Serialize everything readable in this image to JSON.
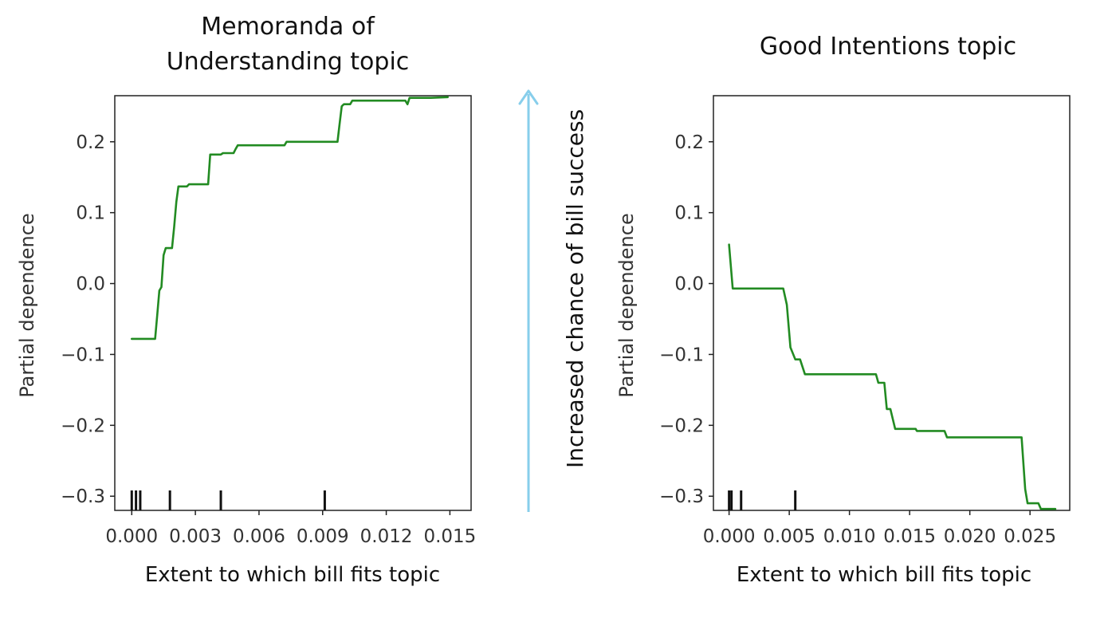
{
  "middle_annotation": {
    "label": "Increased chance of bill success",
    "arrow_color": "#87ceeb"
  },
  "line_color": "#228B22",
  "chart_data": [
    {
      "type": "line",
      "title": "Memoranda of Understanding topic",
      "title_lines": [
        "Memoranda of",
        "Understanding topic"
      ],
      "xlabel": "Extent to which bill fits topic",
      "ylabel": "Partial dependence",
      "xlim": [
        -0.0008,
        0.016
      ],
      "ylim": [
        -0.32,
        0.265
      ],
      "xticks": [
        0.0,
        0.003,
        0.006,
        0.009,
        0.012,
        0.015
      ],
      "xtick_labels": [
        "0.000",
        "0.003",
        "0.006",
        "0.009",
        "0.012",
        "0.015"
      ],
      "yticks": [
        0.2,
        0.1,
        0.0,
        -0.1,
        -0.2,
        -0.3
      ],
      "ytick_labels": [
        "0.2",
        "0.1",
        "0.0",
        "−0.1",
        "−0.2",
        "−0.3"
      ],
      "rug": [
        0.0,
        0.0002,
        0.0004,
        0.0018,
        0.0042,
        0.0091
      ],
      "series": [
        {
          "x": [
            0.0,
            0.0011,
            0.0012,
            0.0013,
            0.0014,
            0.0015,
            0.0016,
            0.0019,
            0.002,
            0.0021,
            0.0022,
            0.0026,
            0.0027,
            0.0036,
            0.0037,
            0.0042,
            0.0043,
            0.0048,
            0.0049,
            0.005,
            0.0072,
            0.0073,
            0.0097,
            0.0098,
            0.0099,
            0.01,
            0.0103,
            0.0104,
            0.0129,
            0.013,
            0.0131,
            0.0141,
            0.0149
          ],
          "y": [
            -0.078,
            -0.078,
            -0.045,
            -0.01,
            -0.005,
            0.04,
            0.05,
            0.05,
            0.08,
            0.115,
            0.137,
            0.137,
            0.14,
            0.14,
            0.182,
            0.182,
            0.184,
            0.184,
            0.19,
            0.195,
            0.195,
            0.2,
            0.2,
            0.225,
            0.25,
            0.253,
            0.253,
            0.258,
            0.258,
            0.253,
            0.262,
            0.262,
            0.263
          ]
        }
      ]
    },
    {
      "type": "line",
      "title": "Good Intentions topic",
      "title_lines": [
        "Good Intentions topic"
      ],
      "xlabel": "Extent to which bill fits topic",
      "ylabel": "Partial dependence",
      "xlim": [
        -0.0013,
        0.0283
      ],
      "ylim": [
        -0.32,
        0.265
      ],
      "xticks": [
        0.0,
        0.005,
        0.01,
        0.015,
        0.02,
        0.025
      ],
      "xtick_labels": [
        "0.000",
        "0.005",
        "0.010",
        "0.015",
        "0.020",
        "0.025"
      ],
      "yticks": [
        0.2,
        0.1,
        0.0,
        -0.1,
        -0.2,
        -0.3
      ],
      "ytick_labels": [
        "0.2",
        "0.1",
        "0.0",
        "−0.1",
        "−0.2",
        "−0.3"
      ],
      "rug": [
        0.0,
        0.0002,
        0.001,
        0.0055
      ],
      "series": [
        {
          "x": [
            0.0,
            0.0003,
            0.0045,
            0.0048,
            0.0051,
            0.0055,
            0.0059,
            0.0063,
            0.0122,
            0.0124,
            0.0129,
            0.0131,
            0.0134,
            0.0138,
            0.0139,
            0.0155,
            0.0156,
            0.0179,
            0.0181,
            0.0243,
            0.0246,
            0.0248,
            0.0257,
            0.0259,
            0.0271
          ],
          "y": [
            0.055,
            -0.007,
            -0.007,
            -0.03,
            -0.09,
            -0.107,
            -0.107,
            -0.128,
            -0.128,
            -0.14,
            -0.14,
            -0.177,
            -0.177,
            -0.205,
            -0.205,
            -0.205,
            -0.208,
            -0.208,
            -0.217,
            -0.217,
            -0.29,
            -0.31,
            -0.31,
            -0.318,
            -0.318
          ]
        }
      ]
    }
  ]
}
